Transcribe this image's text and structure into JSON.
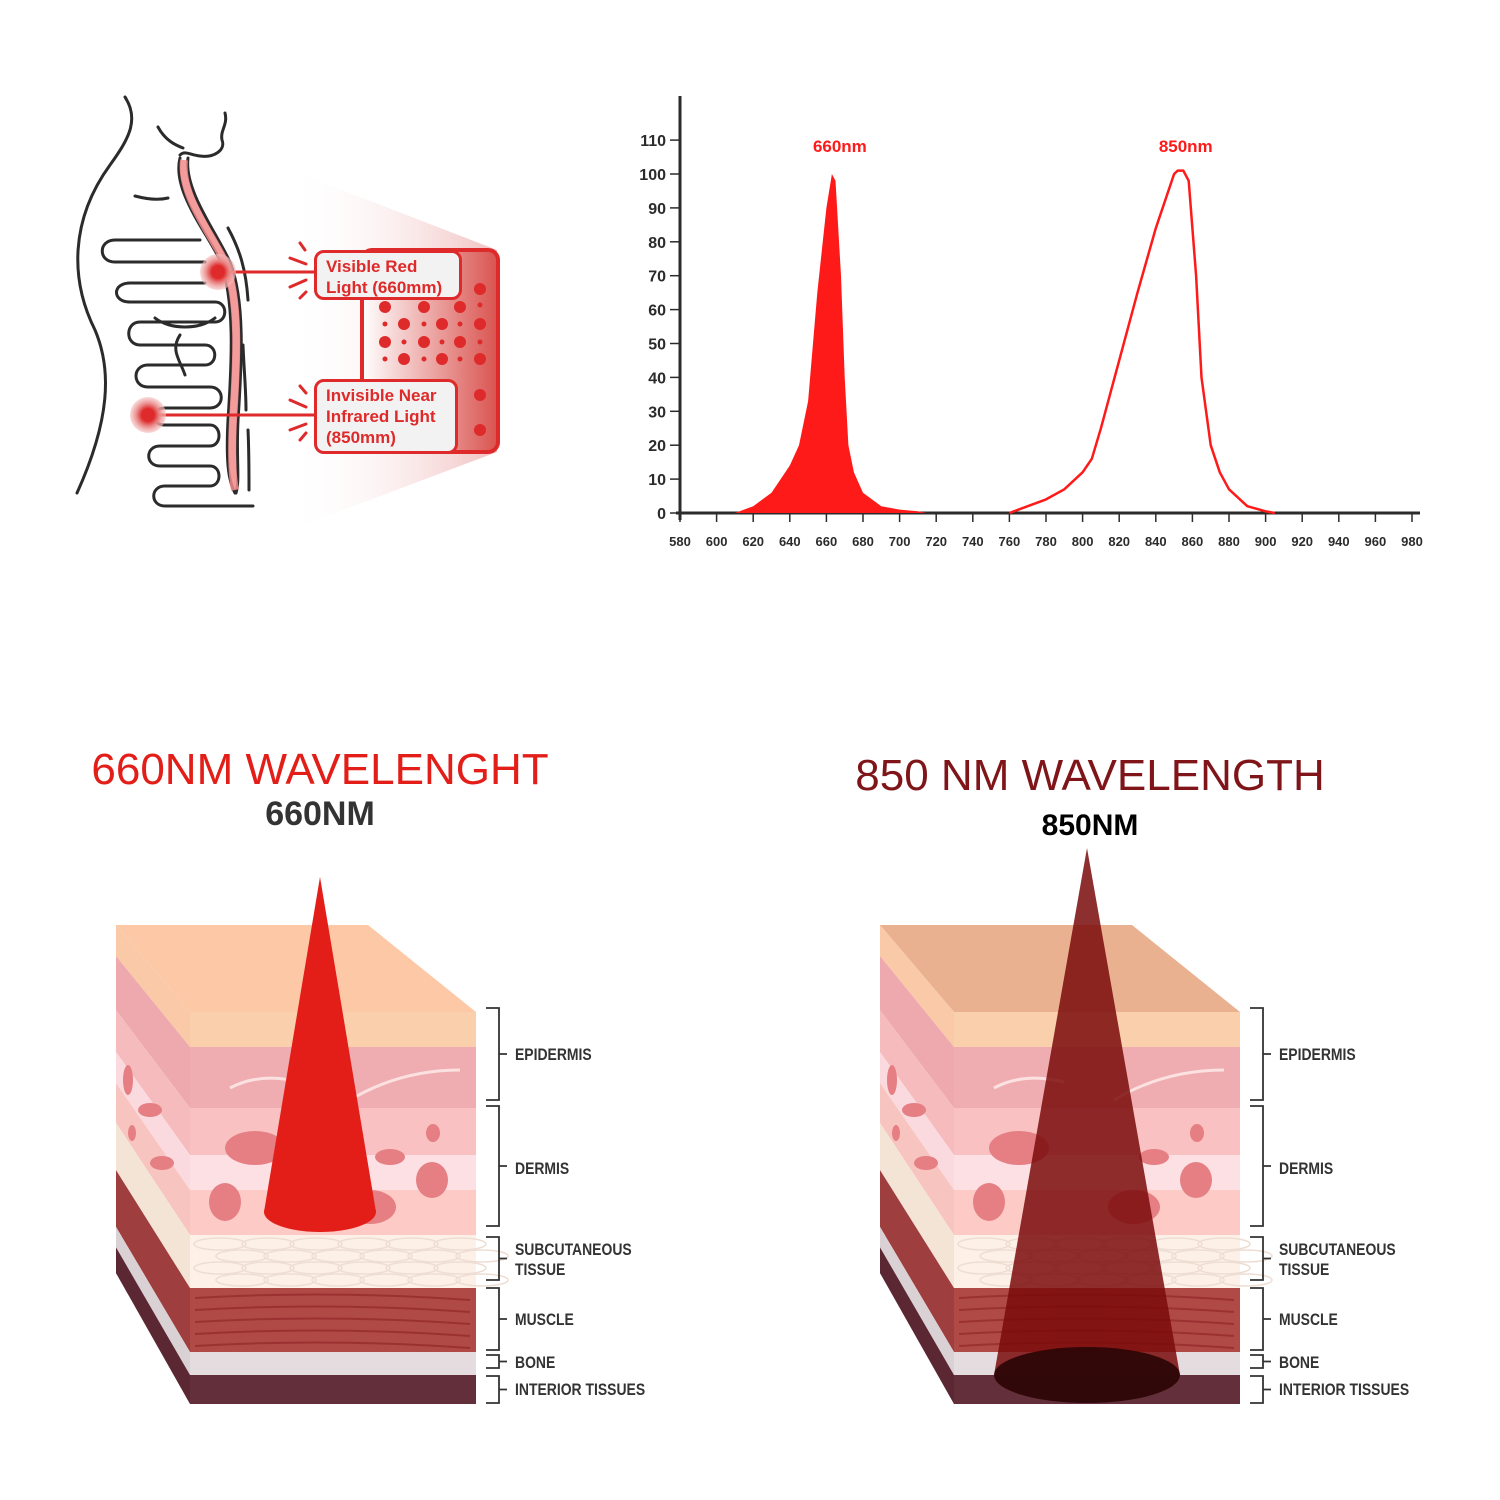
{
  "diagram": {
    "label_660": "Visible Red\nLight (660mm)",
    "label_850": "Invisible Near\nInfrared Light\n(850mm)"
  },
  "chart_data": {
    "type": "area",
    "xlabel": "",
    "ylabel": "",
    "xlim": [
      580,
      980
    ],
    "ylim": [
      0,
      110
    ],
    "x_ticks": [
      580,
      600,
      620,
      640,
      660,
      680,
      700,
      720,
      740,
      760,
      780,
      800,
      820,
      840,
      860,
      880,
      900,
      920,
      940,
      960,
      980
    ],
    "y_ticks": [
      0,
      10,
      20,
      30,
      40,
      50,
      60,
      70,
      80,
      90,
      100,
      110
    ],
    "grid": false,
    "series": [
      {
        "name": "660nm",
        "style": "filled",
        "color": "#FF1A1A",
        "x": [
          610,
          620,
          630,
          640,
          645,
          650,
          655,
          660,
          663,
          665,
          668,
          670,
          672,
          675,
          680,
          690,
          700,
          710,
          715
        ],
        "y": [
          0,
          2,
          6,
          14,
          20,
          33,
          65,
          90,
          100,
          98,
          70,
          40,
          20,
          12,
          6,
          2,
          1,
          0.5,
          0
        ]
      },
      {
        "name": "850nm",
        "style": "line",
        "color": "#FF1A1A",
        "x": [
          760,
          770,
          780,
          790,
          800,
          805,
          810,
          820,
          830,
          840,
          850,
          852,
          855,
          858,
          862,
          865,
          870,
          875,
          880,
          890,
          900,
          905
        ],
        "y": [
          0,
          2,
          4,
          7,
          12,
          16,
          25,
          45,
          65,
          84,
          100,
          101,
          101,
          98,
          70,
          40,
          20,
          12,
          7,
          2,
          0.5,
          0
        ]
      }
    ]
  },
  "panel_660": {
    "title": "660NM WAVELENGHT",
    "subtitle": "660NM",
    "title_color": "#E31E18",
    "beam_color": "#E31E18"
  },
  "panel_850": {
    "title": "850 NM WAVELENGTH",
    "subtitle": "850NM",
    "title_color": "#7F1518",
    "beam_color": "#7A0A0A"
  },
  "layers": {
    "epidermis": "EPIDERMIS",
    "dermis": "DERMIS",
    "subcutaneous_1": "SUBCUTANEOUS",
    "subcutaneous_2": "TISSUE",
    "muscle": "MUSCLE",
    "bone": "BONE",
    "interior": "INTERIOR TISSUES"
  }
}
